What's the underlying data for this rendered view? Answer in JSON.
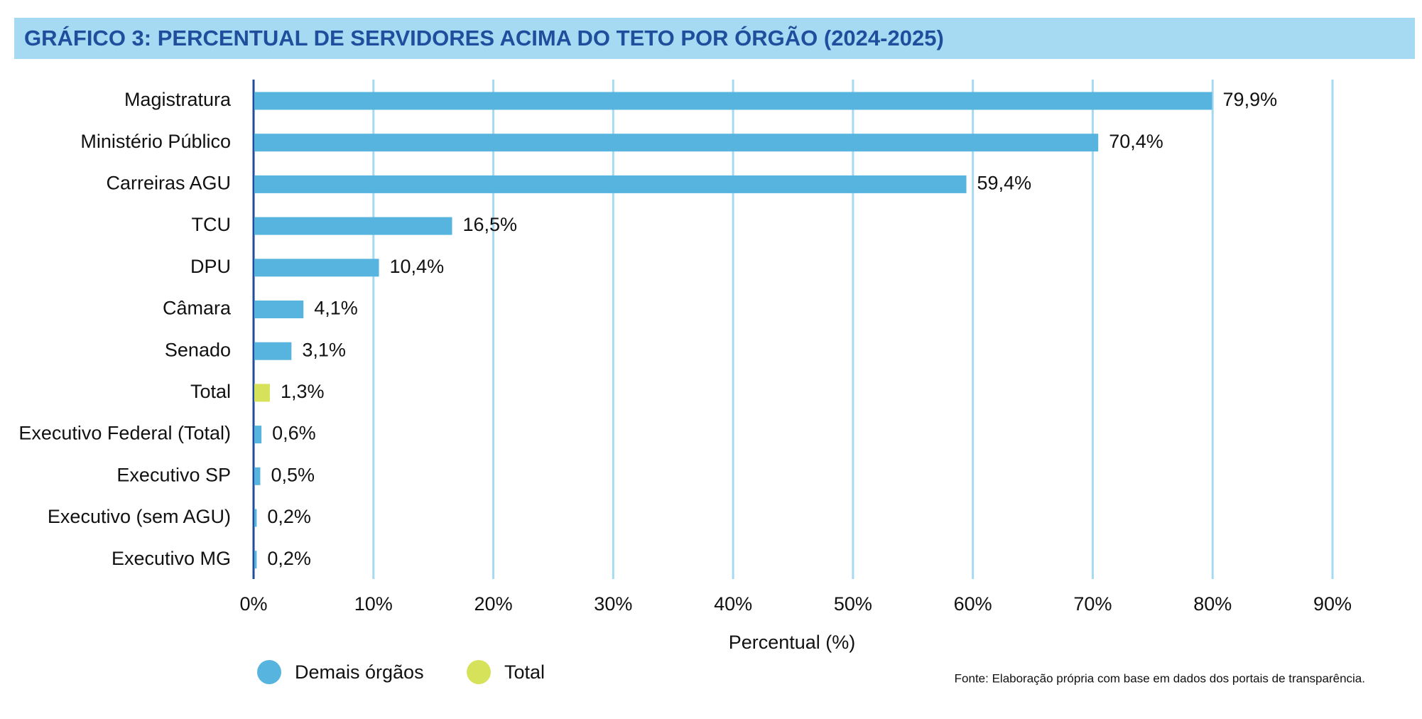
{
  "chart_data": {
    "type": "bar",
    "orientation": "horizontal",
    "title": "GRÁFICO 3: PERCENTUAL DE SERVIDORES ACIMA DO TETO POR ÓRGÃO (2024-2025)",
    "categories": [
      "Magistratura",
      "Ministério Público",
      "Carreiras AGU",
      "TCU",
      "DPU",
      "Câmara",
      "Senado",
      "Total",
      "Executivo Federal (Total)",
      "Executivo SP",
      "Executivo (sem AGU)",
      "Executivo MG"
    ],
    "series": [
      {
        "name": "Demais órgãos",
        "color": "#56b4df",
        "values": [
          79.9,
          70.4,
          59.4,
          16.5,
          10.4,
          4.1,
          3.1,
          null,
          0.6,
          0.5,
          0.2,
          0.2
        ],
        "value_labels": [
          "79,9%",
          "70,4%",
          "59,4%",
          "16,5%",
          "10,4%",
          "4,1%",
          "3,1%",
          null,
          "0,6%",
          "0,5%",
          "0,2%",
          "0,2%"
        ]
      },
      {
        "name": "Total",
        "color": "#d6e25a",
        "values": [
          null,
          null,
          null,
          null,
          null,
          null,
          null,
          1.3,
          null,
          null,
          null,
          null
        ],
        "value_labels": [
          null,
          null,
          null,
          null,
          null,
          null,
          null,
          "1,3%",
          null,
          null,
          null,
          null
        ]
      }
    ],
    "xlabel": "Percentual (%)",
    "xlim": [
      0,
      90
    ],
    "xticks": [
      {
        "value": 0,
        "label": "0%"
      },
      {
        "value": 10,
        "label": "10%"
      },
      {
        "value": 20,
        "label": "20%"
      },
      {
        "value": 30,
        "label": "30%"
      },
      {
        "value": 40,
        "label": "40%"
      },
      {
        "value": 50,
        "label": "50%"
      },
      {
        "value": 60,
        "label": "60%"
      },
      {
        "value": 70,
        "label": "70%"
      },
      {
        "value": 80,
        "label": "80%"
      },
      {
        "value": 90,
        "label": "90%"
      }
    ],
    "grid": true,
    "source": "Fonte: Elaboração própria com base em dados dos portais de transparência."
  }
}
